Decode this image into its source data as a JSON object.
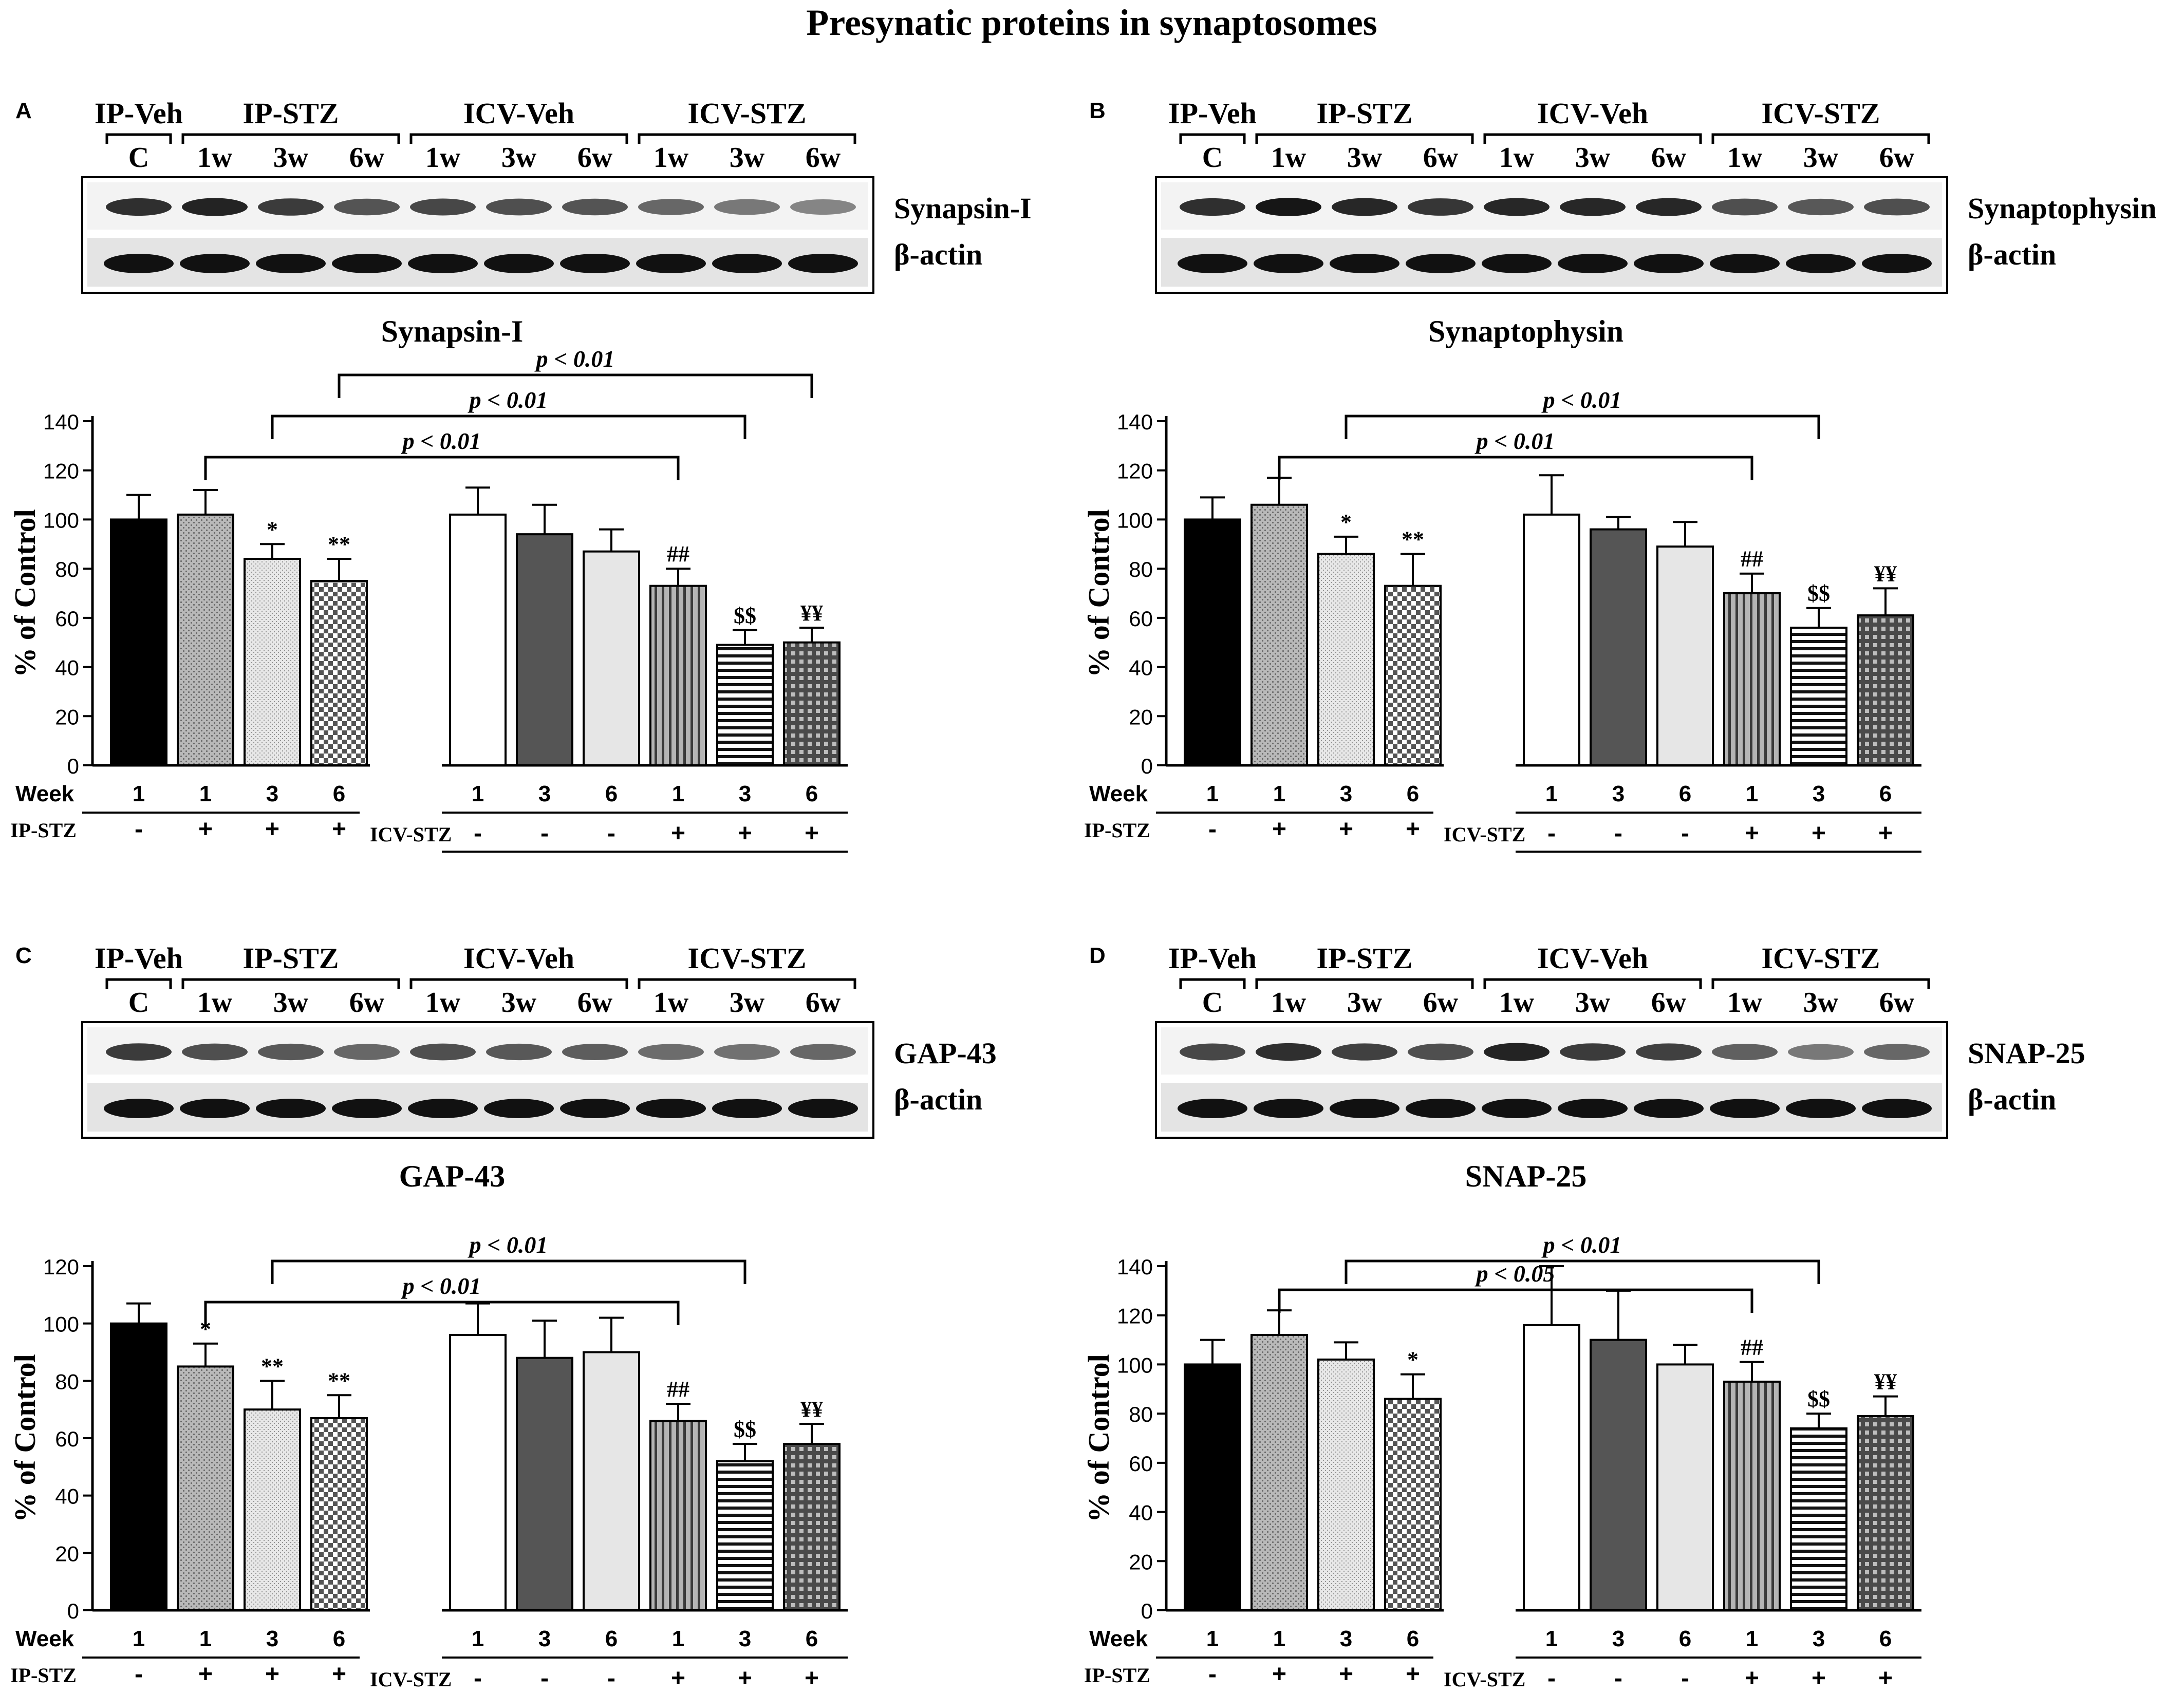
{
  "figure_title": "Presynatic proteins in synaptosomes",
  "blot_header": {
    "groups": [
      "IP-Veh",
      "IP-STZ",
      "ICV-Veh",
      "ICV-STZ"
    ],
    "lanes": [
      "C",
      "1w",
      "3w",
      "6w",
      "1w",
      "3w",
      "6w",
      "1w",
      "3w",
      "6w"
    ]
  },
  "table_rows": {
    "week_label": "Week",
    "ip_label": "IP-STZ",
    "icv_label": "ICV-STZ",
    "weeks": [
      "1",
      "1",
      "3",
      "6",
      "1",
      "3",
      "6",
      "1",
      "3",
      "6"
    ],
    "ip": [
      "-",
      "+",
      "+",
      "+"
    ],
    "icv": [
      "-",
      "-",
      "-",
      "+",
      "+",
      "+"
    ]
  },
  "panels": [
    {
      "letter": "A",
      "protein_label": "Synapsin-I",
      "actin_label": "β-actin",
      "band_intensity": [
        0.85,
        0.9,
        0.8,
        0.7,
        0.75,
        0.72,
        0.7,
        0.62,
        0.55,
        0.5
      ]
    },
    {
      "letter": "B",
      "protein_label": "Synaptophysin",
      "actin_label": "β-actin",
      "band_intensity": [
        0.85,
        0.95,
        0.88,
        0.82,
        0.88,
        0.88,
        0.88,
        0.72,
        0.68,
        0.72
      ]
    },
    {
      "letter": "C",
      "protein_label": "GAP-43",
      "actin_label": "β-actin",
      "band_intensity": [
        0.8,
        0.72,
        0.68,
        0.62,
        0.72,
        0.68,
        0.66,
        0.6,
        0.58,
        0.62
      ]
    },
    {
      "letter": "D",
      "protein_label": "SNAP-25",
      "actin_label": "β-actin",
      "band_intensity": [
        0.75,
        0.85,
        0.78,
        0.72,
        0.9,
        0.8,
        0.78,
        0.65,
        0.55,
        0.62
      ]
    }
  ],
  "chart_data": [
    {
      "type": "bar",
      "title": "Synapsin-I",
      "ylabel": "% of Control",
      "ylim": [
        0,
        140
      ],
      "yticks": [
        0,
        20,
        40,
        60,
        80,
        100,
        120,
        140
      ],
      "categories": [
        "IP-Veh 1w",
        "IP-STZ 1w",
        "IP-STZ 3w",
        "IP-STZ 6w",
        "ICV-Veh 1w",
        "ICV-Veh 3w",
        "ICV-Veh 6w",
        "ICV-STZ 1w",
        "ICV-STZ 3w",
        "ICV-STZ 6w"
      ],
      "values": [
        100,
        102,
        84,
        75,
        102,
        94,
        87,
        73,
        49,
        50
      ],
      "errors": [
        10,
        10,
        6,
        9,
        11,
        12,
        9,
        7,
        6,
        6
      ],
      "significance": [
        "",
        "",
        "*",
        "**",
        "",
        "",
        "",
        "##",
        "$$",
        "¥¥"
      ],
      "comparisons": [
        {
          "from": 1,
          "to": 7,
          "label": "p < 0.01"
        },
        {
          "from": 2,
          "to": 8,
          "label": "p < 0.01"
        },
        {
          "from": 3,
          "to": 9,
          "label": "p < 0.01"
        }
      ]
    },
    {
      "type": "bar",
      "title": "Synaptophysin",
      "ylabel": "% of Control",
      "ylim": [
        0,
        140
      ],
      "yticks": [
        0,
        20,
        40,
        60,
        80,
        100,
        120,
        140
      ],
      "categories": [
        "IP-Veh 1w",
        "IP-STZ 1w",
        "IP-STZ 3w",
        "IP-STZ 6w",
        "ICV-Veh 1w",
        "ICV-Veh 3w",
        "ICV-Veh 6w",
        "ICV-STZ 1w",
        "ICV-STZ 3w",
        "ICV-STZ 6w"
      ],
      "values": [
        100,
        106,
        86,
        73,
        102,
        96,
        89,
        70,
        56,
        61
      ],
      "errors": [
        9,
        11,
        7,
        13,
        16,
        5,
        10,
        8,
        8,
        11
      ],
      "significance": [
        "",
        "",
        "*",
        "**",
        "",
        "",
        "",
        "##",
        "$$",
        "¥¥"
      ],
      "comparisons": [
        {
          "from": 1,
          "to": 7,
          "label": "p < 0.01"
        },
        {
          "from": 2,
          "to": 8,
          "label": "p < 0.01"
        }
      ]
    },
    {
      "type": "bar",
      "title": "GAP-43",
      "ylabel": "% of Control",
      "ylim": [
        0,
        120
      ],
      "yticks": [
        0,
        20,
        40,
        60,
        80,
        100,
        120
      ],
      "categories": [
        "IP-Veh 1w",
        "IP-STZ 1w",
        "IP-STZ 3w",
        "IP-STZ 6w",
        "ICV-Veh 1w",
        "ICV-Veh 3w",
        "ICV-Veh 6w",
        "ICV-STZ 1w",
        "ICV-STZ 3w",
        "ICV-STZ 6w"
      ],
      "values": [
        100,
        85,
        70,
        67,
        96,
        88,
        90,
        66,
        52,
        58
      ],
      "errors": [
        7,
        8,
        10,
        8,
        11,
        13,
        12,
        6,
        6,
        7
      ],
      "significance": [
        "",
        "*",
        "**",
        "**",
        "",
        "",
        "",
        "##",
        "$$",
        "¥¥"
      ],
      "comparisons": [
        {
          "from": 1,
          "to": 7,
          "label": "p < 0.01"
        },
        {
          "from": 2,
          "to": 8,
          "label": "p < 0.01"
        }
      ]
    },
    {
      "type": "bar",
      "title": "SNAP-25",
      "ylabel": "% of Control",
      "ylim": [
        0,
        140
      ],
      "yticks": [
        0,
        20,
        40,
        60,
        80,
        100,
        120,
        140
      ],
      "categories": [
        "IP-Veh 1w",
        "IP-STZ 1w",
        "IP-STZ 3w",
        "IP-STZ 6w",
        "ICV-Veh 1w",
        "ICV-Veh 3w",
        "ICV-Veh 6w",
        "ICV-STZ 1w",
        "ICV-STZ 3w",
        "ICV-STZ 6w"
      ],
      "values": [
        100,
        112,
        102,
        86,
        116,
        110,
        100,
        93,
        74,
        79
      ],
      "errors": [
        10,
        10,
        7,
        10,
        24,
        20,
        8,
        8,
        6,
        8
      ],
      "significance": [
        "",
        "",
        "",
        "*",
        "",
        "",
        "",
        "##",
        "$$",
        "¥¥"
      ],
      "comparisons": [
        {
          "from": 1,
          "to": 7,
          "label": "p < 0.05"
        },
        {
          "from": 2,
          "to": 8,
          "label": "p < 0.01"
        }
      ]
    }
  ]
}
